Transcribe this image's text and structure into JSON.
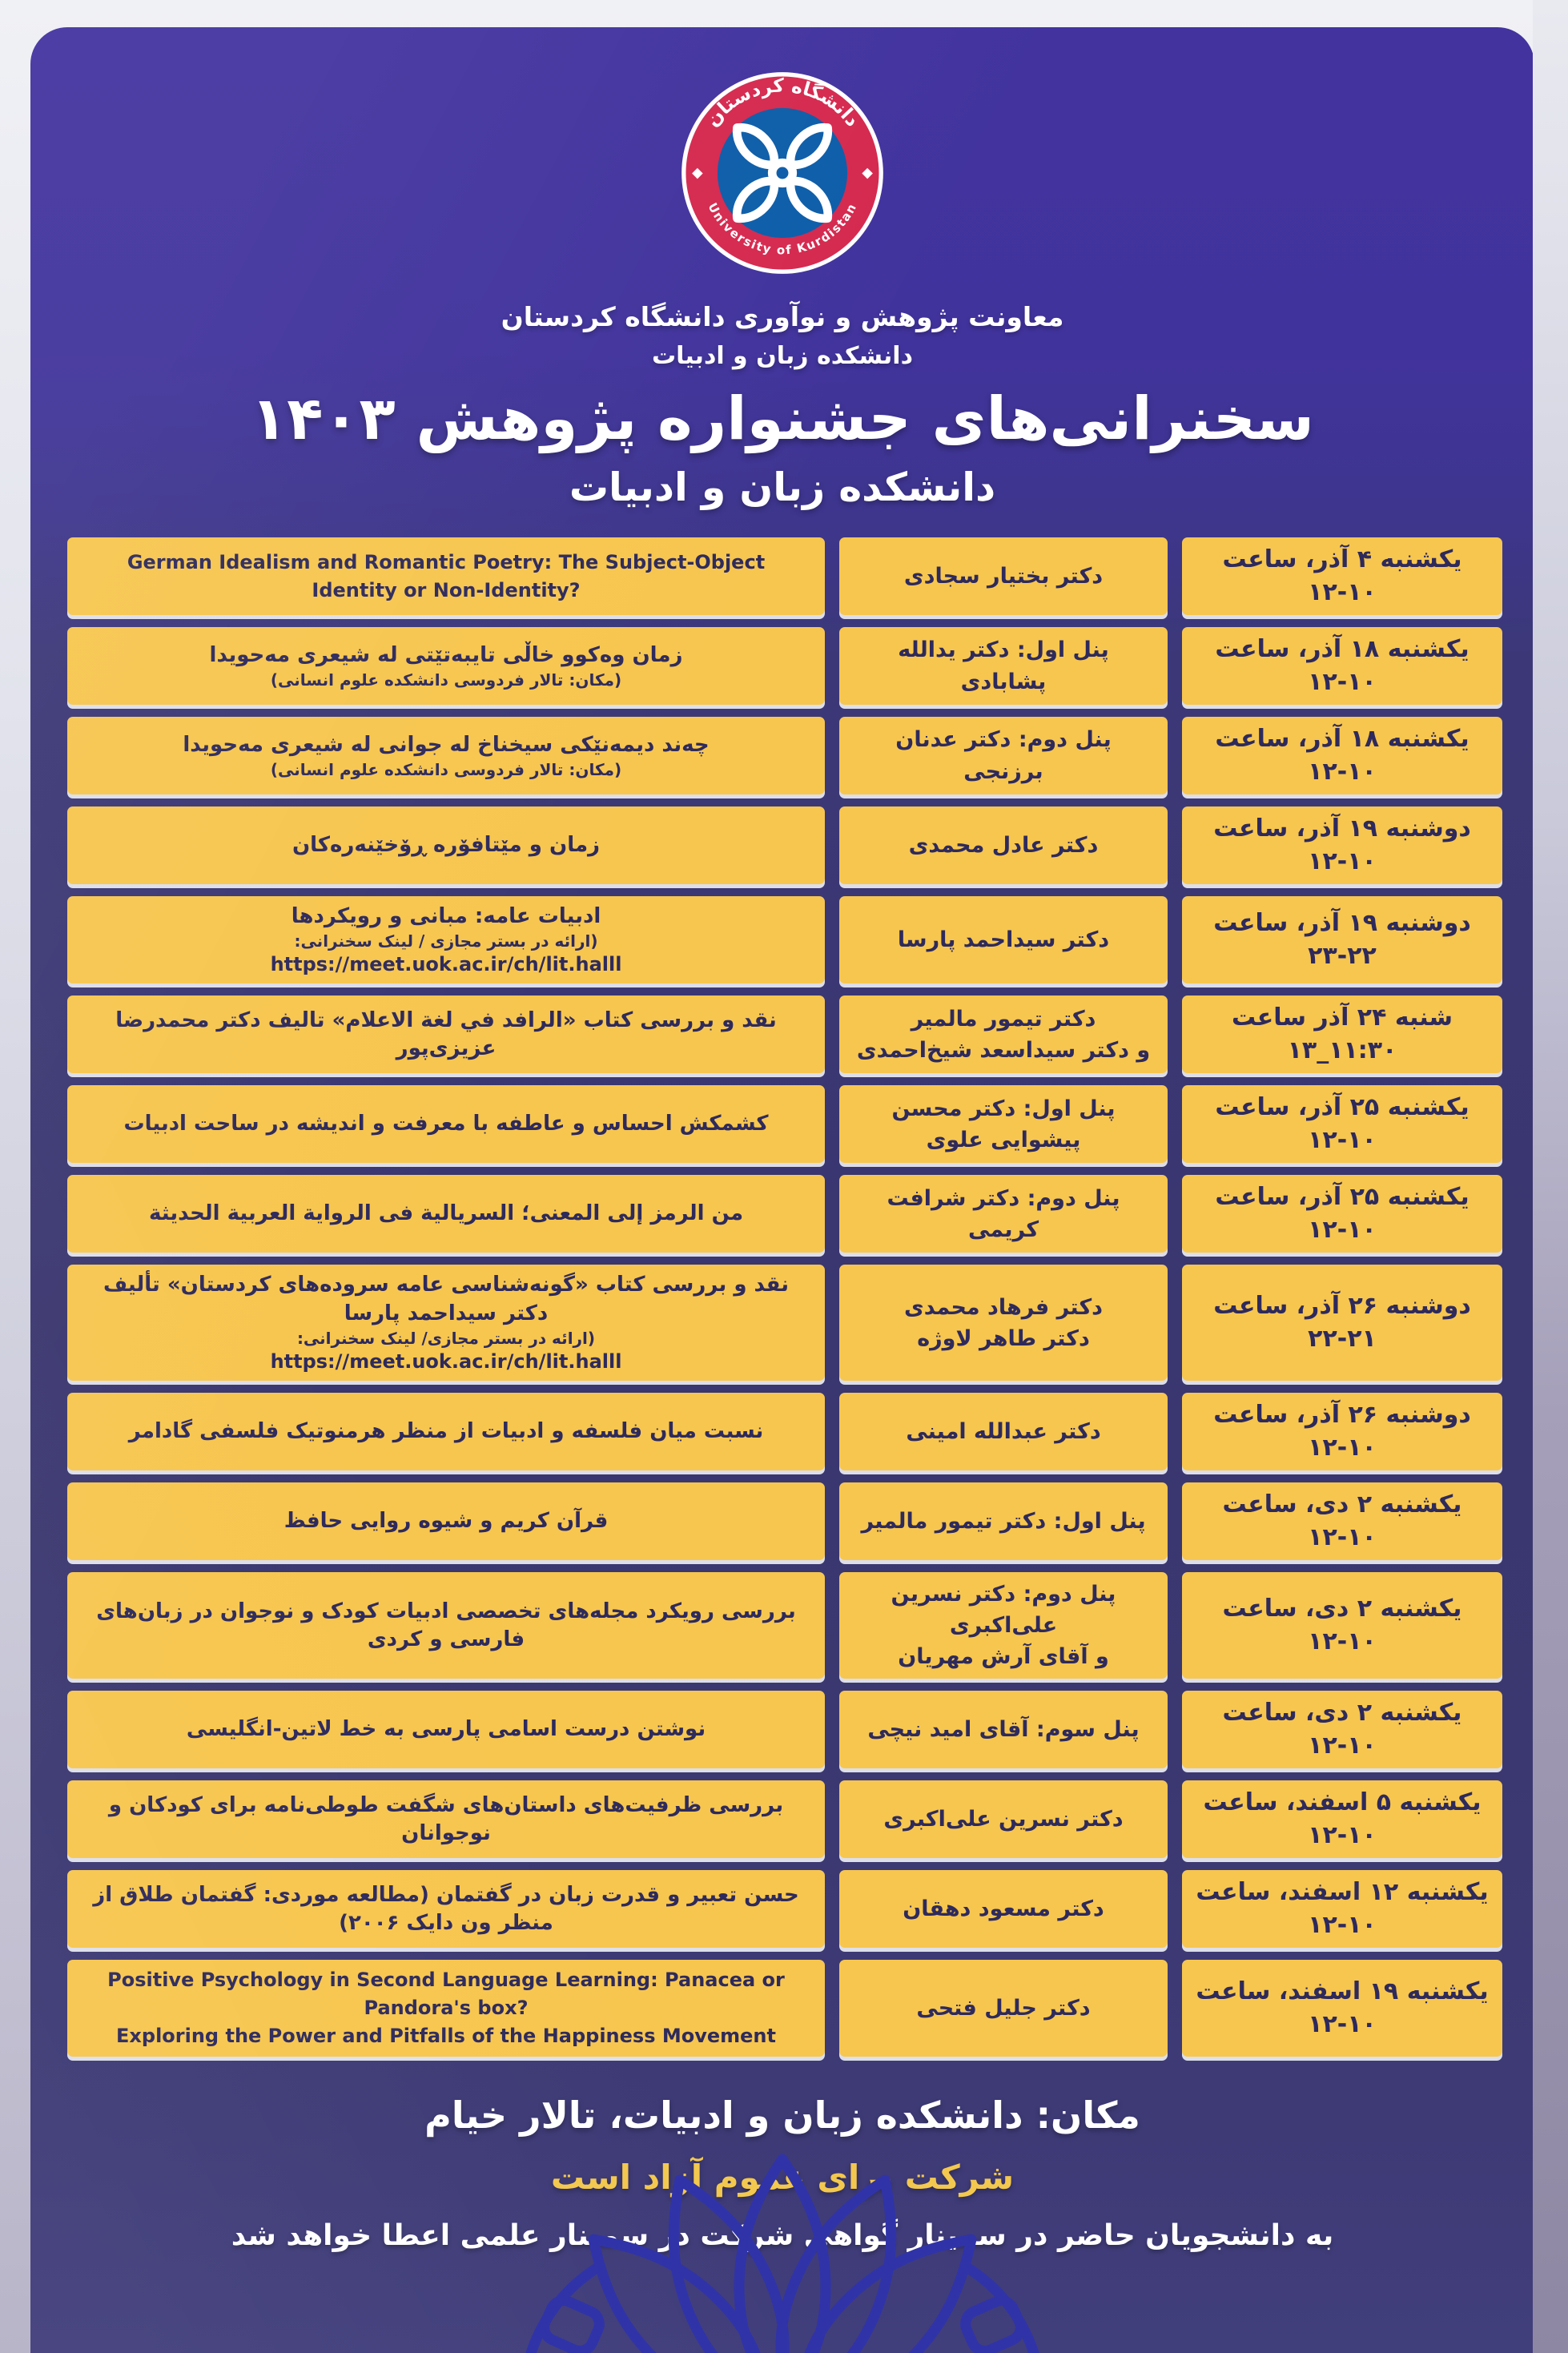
{
  "header": {
    "logo": {
      "top_text": "دانشگاه کردستان",
      "bottom_text": "University of Kurdistan"
    },
    "org_line1": "معاونت پژوهش و نوآوری دانشگاه کردستان",
    "org_line2": "دانشکده زبان و ادبیات",
    "title": "سخنرانی‌های جشنواره پژوهش ۱۴۰۳",
    "subtitle": "دانشکده زبان و ادبیات"
  },
  "schedule": {
    "rows": [
      {
        "topic": [
          "German Idealism and Romantic Poetry: The Subject-Object Identity or Non-Identity?"
        ],
        "speaker": [
          "دکتر بختیار سجادی"
        ],
        "date": "یکشنبه ۴ آذر، ساعت ۱۰-۱۲"
      },
      {
        "topic": [
          "زمان وەکوو خاڵی تایبەتێتی لە شیعری مەحویدا",
          "(مکان: تالار فردوسی دانشکده علوم انسانی)"
        ],
        "speaker": [
          "پنل اول: دکتر یدالله پشابادی"
        ],
        "date": "یکشنبه ۱۸ آذر، ساعت ۱۰-۱۲"
      },
      {
        "topic": [
          "چەند دیمەنێکی سیخناخ لە جوانی لە شیعری مەحویدا",
          "(مکان: تالار فردوسی دانشکده علوم انسانی)"
        ],
        "speaker": [
          "پنل دوم: دکتر عدنان برزنجی"
        ],
        "date": "یکشنبه ۱۸ آذر، ساعت ۱۰-۱۲"
      },
      {
        "topic": [
          "زمان و مێتافۆرە ڕۆخێنەرەکان"
        ],
        "speaker": [
          "دکتر عادل محمدی"
        ],
        "date": "دوشنبه ۱۹ آذر، ساعت ۱۰-۱۲"
      },
      {
        "topic": [
          "ادبیات عامه: مبانی و رویکردها",
          "(ارائه در بستر مجازی / لینک سخنرانی:",
          "https://meet.uok.ac.ir/ch/lit.halll"
        ],
        "speaker": [
          "دکتر سیداحمد پارسا"
        ],
        "date": "دوشنبه ۱۹ آذر، ساعت ۲۲-۲۳"
      },
      {
        "topic": [
          "نقد و بررسی کتاب «الرافد في لغة الاعلام» تالیف دکتر محمدرضا عزیزی‌پور"
        ],
        "speaker": [
          "دکتر تیمور مالمیر",
          "و دکتر سیداسعد شیخ‌احمدی"
        ],
        "date": "شنبه ۲۴ آذر ساعت ۱۱:۳۰_۱۳"
      },
      {
        "topic": [
          "کشمکش احساس و عاطفه با معرفت و اندیشه در ساحت ادبیات"
        ],
        "speaker": [
          "پنل اول: دکتر محسن پیشوایی علوی"
        ],
        "date": "یکشنبه ۲۵ آذر، ساعت ۱۰-۱۲"
      },
      {
        "topic": [
          "من الرمز إلی المعنی؛ السریالیة فی الروایة العربیة الحدیثة"
        ],
        "speaker": [
          "پنل دوم: دکتر شرافت کریمی"
        ],
        "date": "یکشنبه ۲۵ آذر، ساعت ۱۰-۱۲"
      },
      {
        "topic": [
          "نقد و بررسی کتاب «گونه‌شناسی عامه سروده‌های کردستان» تألیف دکتر سیداحمد پارسا",
          "(ارائه در بستر مجازی/ لینک سخنرانی:",
          "https://meet.uok.ac.ir/ch/lit.halll"
        ],
        "speaker": [
          "دکتر فرهاد محمدی",
          "دکتر طاهر لاوژه"
        ],
        "date": "دوشنبه ۲۶ آذر، ساعت ۲۱-۲۲"
      },
      {
        "topic": [
          "نسبت میان فلسفه و ادبیات از منظر هرمنوتیک فلسفی گادامر"
        ],
        "speaker": [
          "دکتر عبدالله امینی"
        ],
        "date": "دوشنبه ۲۶ آذر، ساعت ۱۰-۱۲"
      },
      {
        "topic": [
          "قرآن کریم و شیوه روایی حافظ"
        ],
        "speaker": [
          "پنل اول: دکتر تیمور مالمیر"
        ],
        "date": "یکشنبه ۲ دی، ساعت ۱۰-۱۲"
      },
      {
        "topic": [
          "بررسی رویکرد مجله‌های تخصصی ادبیات کودک و نوجوان در زبان‌های فارسی و کردی"
        ],
        "speaker": [
          "پنل دوم: دکتر نسرین علی‌اکبری",
          "و آقای آرش مهریان"
        ],
        "date": "یکشنبه ۲ دی، ساعت ۱۰-۱۲"
      },
      {
        "topic": [
          "نوشتن درست اسامی پارسی به خط لاتین-انگلیسی"
        ],
        "speaker": [
          "پنل سوم: آقای امید نیچی"
        ],
        "date": "یکشنبه ۲ دی، ساعت ۱۰-۱۲"
      },
      {
        "topic": [
          "بررسی ظرفیت‌های داستان‌های شگفت طوطی‌نامه برای کودکان و نوجوانان"
        ],
        "speaker": [
          "دکتر نسرین علی‌اکبری"
        ],
        "date": "یکشنبه ۵ اسفند، ساعت ۱۰-۱۲"
      },
      {
        "topic": [
          "حسن تعبیر و قدرت زبان در گفتمان (مطالعه موردی: گفتمان طلاق از منظر ون دایک ۲۰۰۶)"
        ],
        "speaker": [
          "دکتر مسعود دهقان"
        ],
        "date": "یکشنبه ۱۲ اسفند، ساعت ۱۰-۱۲"
      },
      {
        "topic": [
          "Positive Psychology in Second Language Learning: Panacea or Pandora's box?",
          "Exploring the Power and Pitfalls of the Happiness Movement"
        ],
        "speaker": [
          "دکتر جلیل فتحی"
        ],
        "date": "یکشنبه ۱۹ اسفند، ساعت ۱۰-۱۲"
      }
    ]
  },
  "footer": {
    "location": "مکان: دانشکده زبان و ادبیات، تالار خیام",
    "open_note": "شرکت برای عموم آزاد است",
    "certificate_note": "به دانشجویان حاضر در سمینار گواهی شرکت در سمینار علمی اعطا خواهد شد"
  },
  "colors": {
    "header_purple": "#42339f",
    "body_purple": "#3a366f",
    "box_yellow": "#f7c64f",
    "text_navy": "#2e2a5c",
    "accent_yellow": "#f3c84e",
    "logo_red": "#d5294f",
    "logo_blue": "#0d5da9",
    "flower_blue": "#3033a8",
    "page_margin": "#e7e9ee"
  }
}
